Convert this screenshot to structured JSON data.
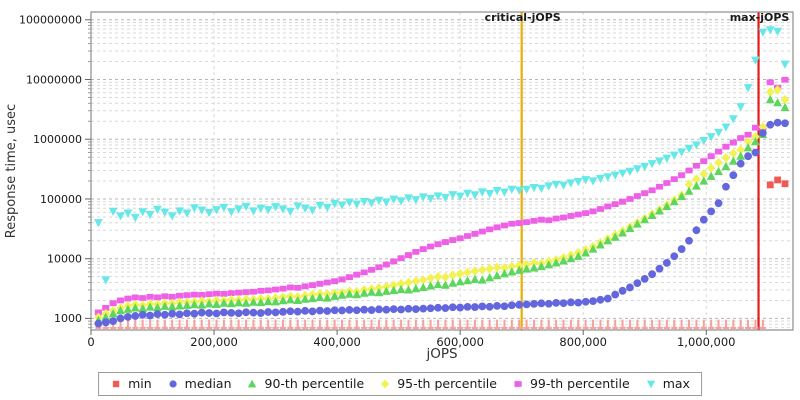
{
  "chart_data": {
    "type": "scatter",
    "title": "",
    "xlabel": "jOPS",
    "ylabel": "Response time, usec",
    "x_range": [
      0,
      1141000
    ],
    "y_range": [
      640,
      135000000
    ],
    "y_scale": "log",
    "grid": true,
    "legend_position": "bottom",
    "colors": {
      "plot_border": "#8c8c8c",
      "grid_major": "#b5b5b5",
      "grid_minor": "#d9d9d9",
      "tick": "#666666",
      "text": "#1a1a1a",
      "critical_line": "#e7af00",
      "max_line": "#e51c1c"
    },
    "x_ticks": [
      {
        "v": 0,
        "label": "0"
      },
      {
        "v": 200000,
        "label": "200,000"
      },
      {
        "v": 400000,
        "label": "400,000"
      },
      {
        "v": 600000,
        "label": "600,000"
      },
      {
        "v": 800000,
        "label": "800,000"
      },
      {
        "v": 1000000,
        "label": "1,000,000"
      }
    ],
    "y_ticks": [
      {
        "v": 1000,
        "label": "1000"
      },
      {
        "v": 10000,
        "label": "10000"
      },
      {
        "v": 100000,
        "label": "100000"
      },
      {
        "v": 1000000,
        "label": "1000000"
      },
      {
        "v": 10000000,
        "label": "10000000"
      },
      {
        "v": 100000000,
        "label": "100000000"
      }
    ],
    "annotations": [
      {
        "id": "critical-jops",
        "label": "critical-jOPS",
        "x": 700000,
        "color": "#e7af00"
      },
      {
        "id": "max-jops",
        "label": "max-jOPS",
        "x": 1085000,
        "color": "#e51c1c"
      }
    ],
    "x_unit_multiplier": 1000,
    "x_jops_thousands": [
      12,
      24,
      36,
      48,
      60,
      72,
      84,
      96,
      108,
      120,
      132,
      144,
      156,
      168,
      180,
      192,
      204,
      216,
      228,
      240,
      252,
      264,
      276,
      288,
      300,
      312,
      324,
      336,
      348,
      360,
      372,
      384,
      396,
      408,
      420,
      432,
      444,
      456,
      468,
      480,
      492,
      504,
      516,
      528,
      540,
      552,
      564,
      576,
      588,
      600,
      612,
      624,
      636,
      648,
      660,
      672,
      684,
      696,
      708,
      720,
      732,
      744,
      756,
      768,
      780,
      792,
      804,
      816,
      828,
      840,
      852,
      864,
      876,
      888,
      900,
      912,
      924,
      936,
      948,
      960,
      972,
      984,
      996,
      1008,
      1020,
      1032,
      1044,
      1056,
      1068,
      1080,
      1092,
      1104,
      1116,
      1128
    ],
    "series": [
      {
        "name": "min",
        "marker": "tick",
        "color": "#ef5b52",
        "tick_color": "#f6a19b",
        "values": [
          700,
          700,
          700,
          700,
          700,
          700,
          700,
          700,
          700,
          700,
          700,
          700,
          700,
          700,
          700,
          700,
          700,
          700,
          700,
          700,
          700,
          700,
          700,
          700,
          700,
          700,
          700,
          700,
          700,
          700,
          700,
          700,
          700,
          700,
          700,
          700,
          700,
          700,
          700,
          700,
          700,
          700,
          700,
          700,
          700,
          700,
          700,
          700,
          700,
          700,
          700,
          700,
          700,
          700,
          700,
          700,
          700,
          700,
          700,
          700,
          700,
          700,
          700,
          700,
          700,
          700,
          700,
          700,
          700,
          700,
          700,
          700,
          700,
          700,
          700,
          700,
          700,
          700,
          700,
          700,
          700,
          700,
          700,
          700,
          700,
          700,
          700,
          700,
          700,
          700,
          760,
          172000,
          208000,
          180000
        ]
      },
      {
        "name": "median",
        "marker": "circle",
        "color": "#6366dc",
        "values": [
          820,
          860,
          900,
          1000,
          1060,
          1100,
          1150,
          1120,
          1180,
          1150,
          1200,
          1170,
          1220,
          1200,
          1250,
          1230,
          1210,
          1260,
          1240,
          1220,
          1270,
          1250,
          1230,
          1280,
          1260,
          1290,
          1320,
          1300,
          1340,
          1310,
          1350,
          1330,
          1370,
          1360,
          1390,
          1370,
          1400,
          1380,
          1420,
          1400,
          1430,
          1410,
          1450,
          1430,
          1460,
          1480,
          1510,
          1490,
          1540,
          1520,
          1560,
          1550,
          1590,
          1570,
          1620,
          1600,
          1660,
          1690,
          1720,
          1750,
          1790,
          1760,
          1820,
          1800,
          1860,
          1840,
          1900,
          1950,
          2050,
          2150,
          2500,
          2900,
          3300,
          3900,
          4600,
          5500,
          6800,
          8500,
          11000,
          14500,
          20000,
          30000,
          45000,
          62000,
          85000,
          160000,
          250000,
          390000,
          520000,
          600000,
          1270000,
          1750000,
          1900000,
          1850000
        ]
      },
      {
        "name": "90-th percentile",
        "marker": "triangle-up",
        "color": "#5cd65c",
        "values": [
          925,
          1050,
          1200,
          1350,
          1420,
          1500,
          1460,
          1550,
          1520,
          1600,
          1570,
          1620,
          1660,
          1700,
          1680,
          1750,
          1720,
          1800,
          1770,
          1830,
          1800,
          1870,
          1850,
          1920,
          1900,
          1980,
          2050,
          2000,
          2100,
          2150,
          2250,
          2200,
          2350,
          2450,
          2550,
          2500,
          2650,
          2750,
          2700,
          2850,
          2950,
          3050,
          3000,
          3150,
          3300,
          3500,
          3700,
          3600,
          3900,
          4100,
          4300,
          4500,
          4400,
          4800,
          5200,
          5600,
          6000,
          6400,
          6700,
          7000,
          7400,
          7900,
          8500,
          9200,
          10000,
          11000,
          12500,
          14500,
          17000,
          20000,
          23000,
          27000,
          32000,
          38000,
          45000,
          53000,
          63000,
          75000,
          90000,
          110000,
          135000,
          165000,
          200000,
          240000,
          290000,
          350000,
          430000,
          520000,
          720000,
          910000,
          1200000,
          4600000,
          4100000,
          3400000
        ]
      },
      {
        "name": "95-th percentile",
        "marker": "diamond",
        "color": "#f2f255",
        "values": [
          1040,
          1200,
          1350,
          1500,
          1620,
          1700,
          1660,
          1750,
          1720,
          1800,
          1780,
          1850,
          1870,
          1900,
          1950,
          1920,
          2000,
          1980,
          2050,
          2030,
          2100,
          2080,
          2150,
          2130,
          2200,
          2280,
          2350,
          2300,
          2420,
          2500,
          2580,
          2540,
          2650,
          2700,
          2850,
          2800,
          3000,
          3100,
          3250,
          3400,
          3600,
          3800,
          4000,
          4200,
          4400,
          4700,
          5000,
          4900,
          5300,
          5600,
          5900,
          6200,
          6500,
          6800,
          7100,
          7000,
          7400,
          7700,
          8000,
          8500,
          8300,
          9000,
          9600,
          10400,
          11400,
          12600,
          14000,
          16000,
          18500,
          21500,
          25000,
          29000,
          34000,
          40000,
          47000,
          56000,
          66000,
          79000,
          95000,
          115000,
          175000,
          215000,
          265000,
          330000,
          405000,
          490000,
          580000,
          665000,
          910000,
          1100000,
          1600000,
          6200000,
          6700000,
          4600000
        ]
      },
      {
        "name": "99-th percentile",
        "marker": "square",
        "color": "#ee61e6",
        "values": [
          1260,
          1500,
          1800,
          2000,
          2150,
          2250,
          2200,
          2300,
          2250,
          2350,
          2300,
          2400,
          2450,
          2500,
          2480,
          2550,
          2600,
          2580,
          2650,
          2700,
          2750,
          2800,
          2900,
          2950,
          3050,
          3150,
          3300,
          3250,
          3450,
          3600,
          3800,
          4000,
          4200,
          4500,
          4900,
          5400,
          5900,
          6500,
          7200,
          8000,
          9000,
          10200,
          11500,
          13000,
          14500,
          16000,
          17500,
          19000,
          20500,
          22000,
          24000,
          26000,
          28500,
          31000,
          33500,
          36000,
          38500,
          39500,
          41000,
          43000,
          45000,
          44000,
          47000,
          49000,
          52000,
          55000,
          58000,
          62000,
          68000,
          75000,
          82000,
          90000,
          100000,
          112000,
          125000,
          140000,
          160000,
          185000,
          215000,
          250000,
          300000,
          360000,
          430000,
          520000,
          620000,
          750000,
          880000,
          1050000,
          1190000,
          1560000,
          1560000,
          9000000,
          7300000,
          9900000
        ]
      },
      {
        "name": "max",
        "marker": "triangle-down",
        "color": "#66e8e8",
        "values": [
          40000,
          4400,
          62000,
          52000,
          58000,
          49000,
          61000,
          55000,
          67000,
          60000,
          52000,
          63000,
          58000,
          71000,
          65000,
          59000,
          66000,
          72000,
          61000,
          68000,
          75000,
          63000,
          70000,
          66000,
          74000,
          68000,
          62000,
          76000,
          70000,
          65000,
          78000,
          72000,
          84000,
          79000,
          88000,
          82000,
          91000,
          86000,
          95000,
          89000,
          99000,
          93000,
          104000,
          97000,
          108000,
          102000,
          112000,
          106000,
          118000,
          111000,
          124000,
          117000,
          131000,
          123000,
          138000,
          130000,
          145000,
          140000,
          145000,
          155000,
          150000,
          165000,
          175000,
          170000,
          185000,
          195000,
          210000,
          200000,
          220000,
          235000,
          250000,
          270000,
          290000,
          320000,
          350000,
          390000,
          430000,
          480000,
          540000,
          610000,
          700000,
          800000,
          950000,
          1100000,
          1300000,
          1600000,
          2200000,
          3500000,
          7300000,
          21000000,
          62000000,
          68000000,
          64000000,
          18000000
        ]
      }
    ]
  }
}
